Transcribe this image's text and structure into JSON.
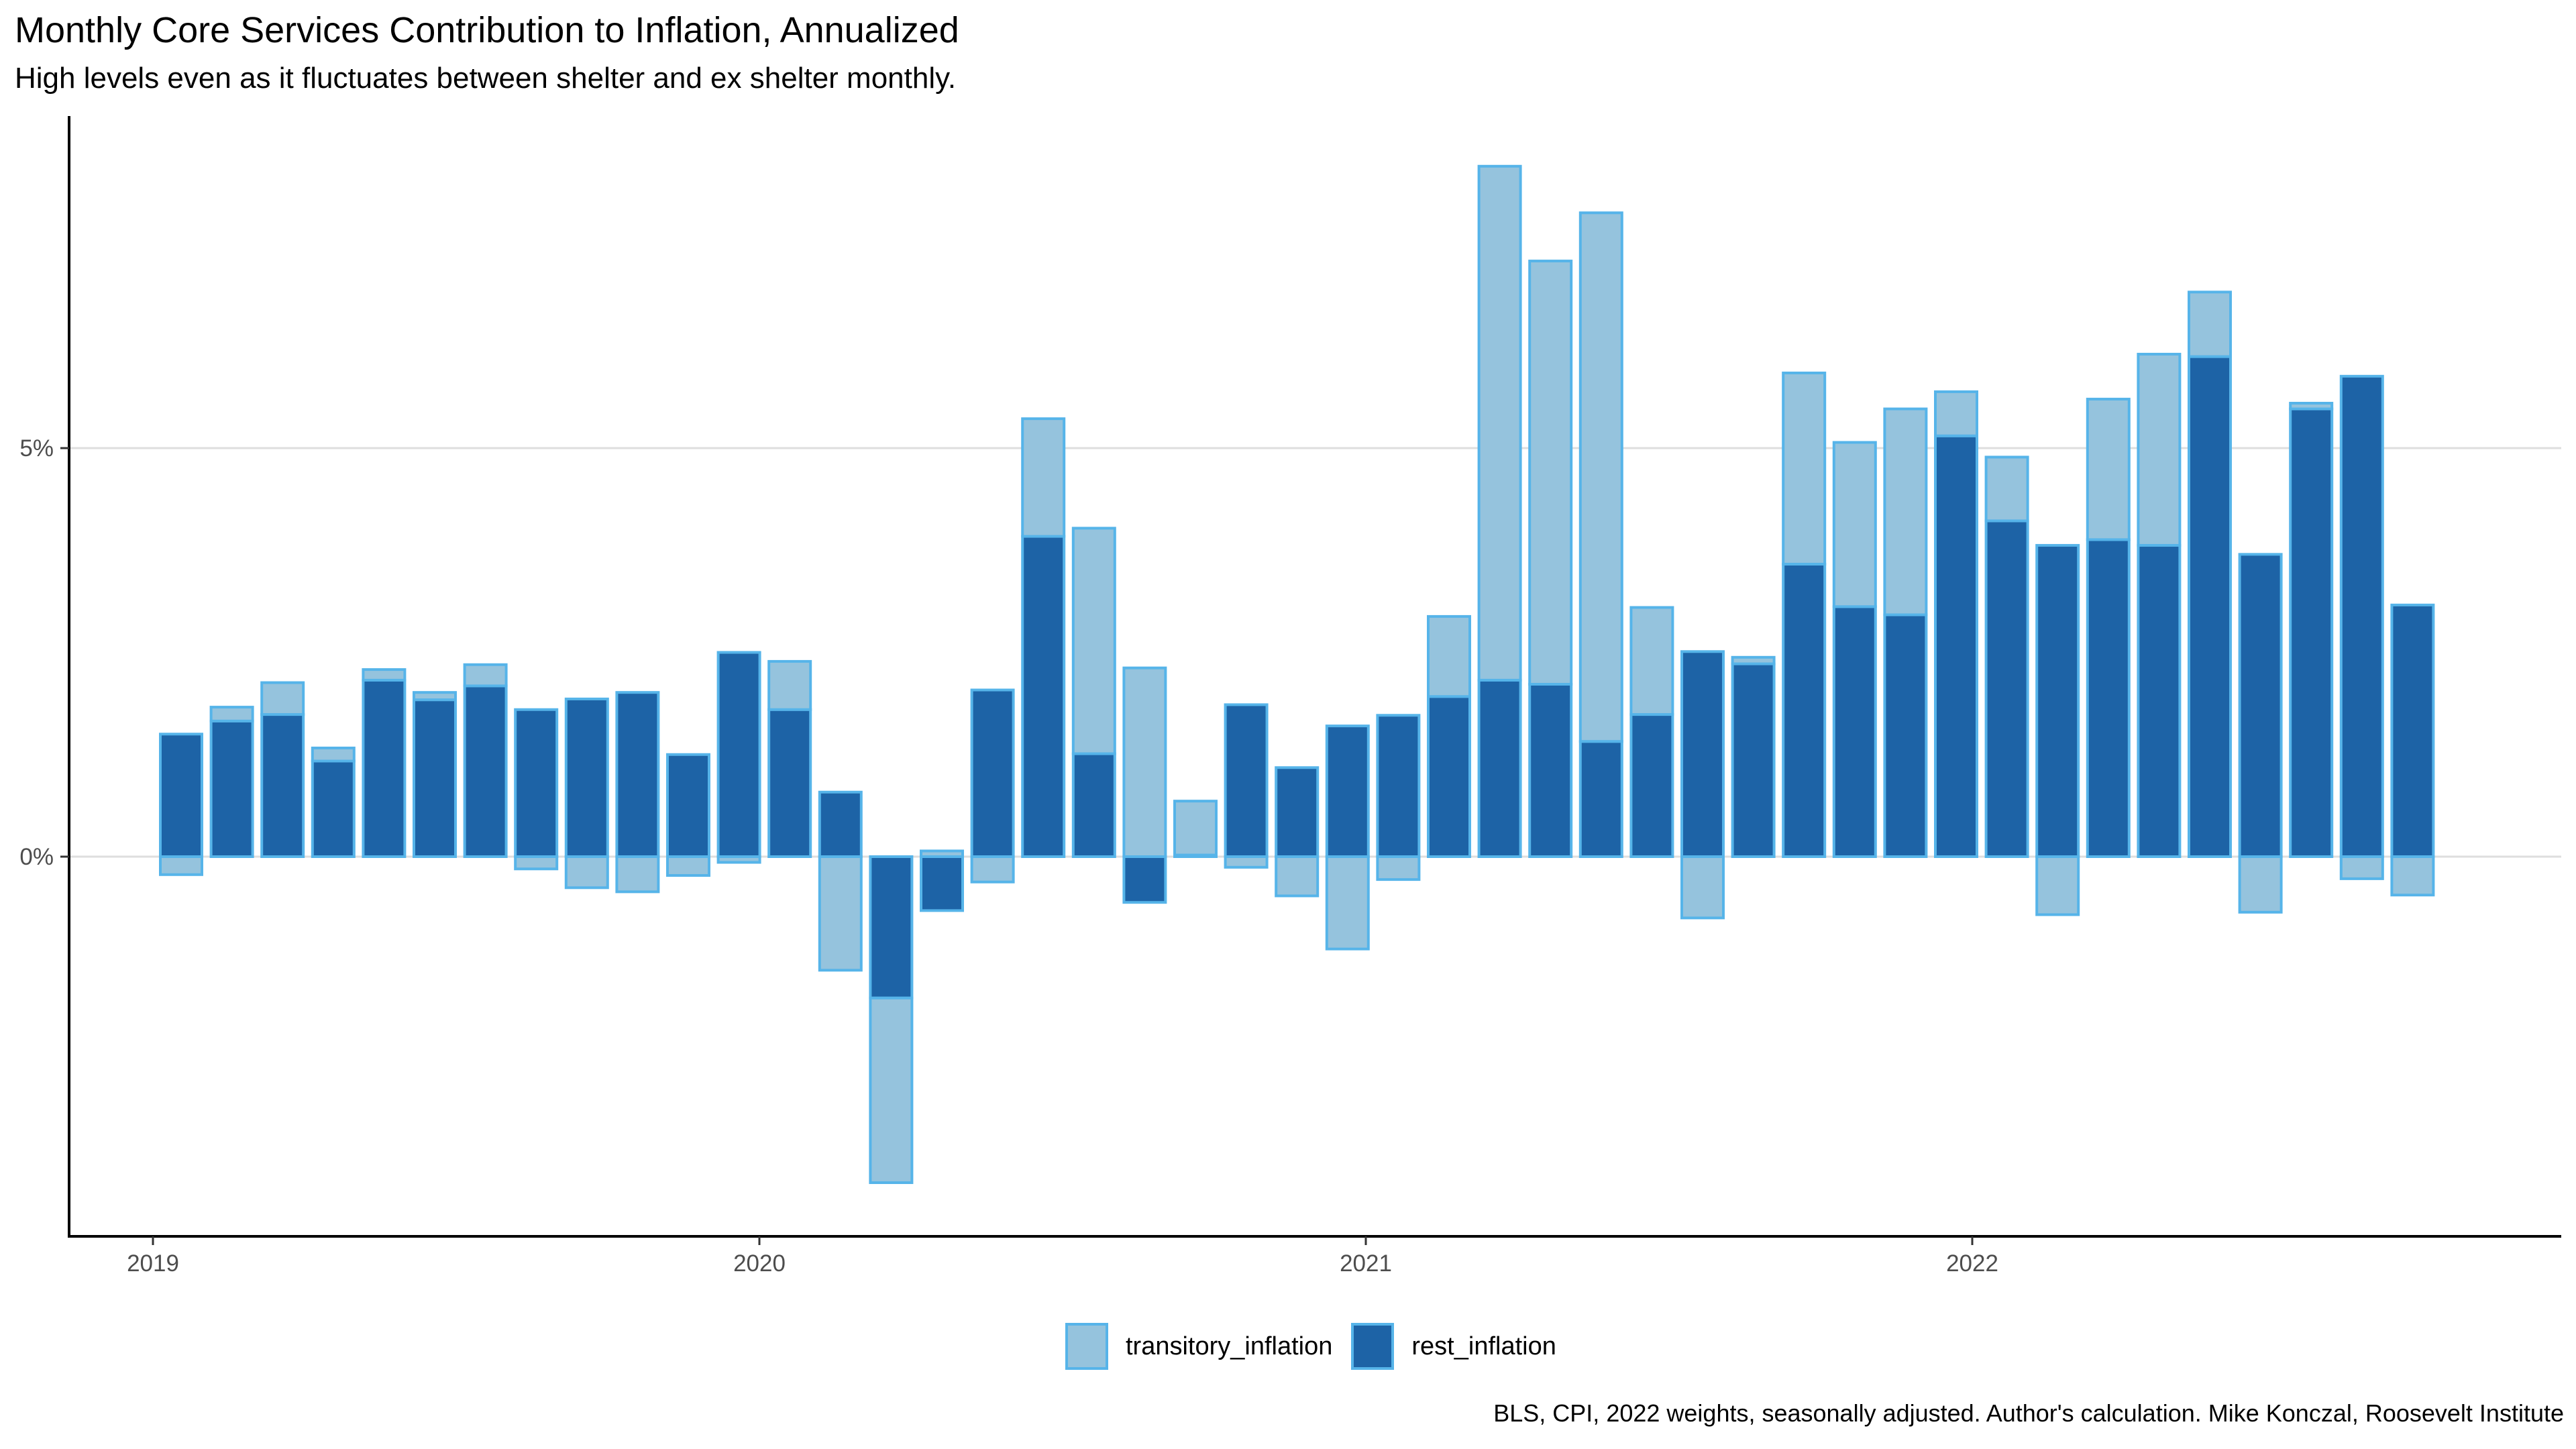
{
  "title": "Monthly Core Services Contribution to Inflation, Annualized",
  "subtitle": "High levels even as it fluctuates between shelter and ex shelter monthly.",
  "caption": "BLS, CPI, 2022 weights, seasonally adjusted. Author's calculation. Mike Konczal, Roosevelt Institute",
  "colors": {
    "transitory_fill": "#95c3dd",
    "rest_fill": "#1d63a6",
    "bar_outline": "#56b4e9",
    "gridline": "#dedede",
    "axis": "#000000"
  },
  "legend": [
    {
      "label": "transitory_inflation",
      "color": "#95c3dd"
    },
    {
      "label": "rest_inflation",
      "color": "#1d63a6"
    }
  ],
  "chart_data": {
    "type": "bar",
    "stacked": true,
    "title": "Monthly Core Services Contribution to Inflation, Annualized",
    "subtitle": "High levels even as it fluctuates between shelter and ex shelter monthly.",
    "xlabel": "",
    "ylabel": "",
    "x_ticks": [
      "2019",
      "2020",
      "2021",
      "2022"
    ],
    "y_ticks": [
      "0%",
      "5%"
    ],
    "ylim": [
      -4.6,
      9.0
    ],
    "grid": "horizontal major",
    "legend_position": "bottom",
    "categories": [
      "2019-02",
      "2019-03",
      "2019-04",
      "2019-05",
      "2019-06",
      "2019-07",
      "2019-08",
      "2019-09",
      "2019-10",
      "2019-11",
      "2019-12",
      "2020-01",
      "2020-02",
      "2020-03",
      "2020-04",
      "2020-05",
      "2020-06",
      "2020-07",
      "2020-08",
      "2020-09",
      "2020-10",
      "2020-11",
      "2020-12",
      "2021-01",
      "2021-02",
      "2021-03",
      "2021-04",
      "2021-05",
      "2021-06",
      "2021-07",
      "2021-08",
      "2021-09",
      "2021-10",
      "2021-11",
      "2021-12",
      "2022-01",
      "2022-02",
      "2022-03",
      "2022-04",
      "2022-05",
      "2022-06",
      "2022-07",
      "2022-08",
      "2022-09",
      "2022-10"
    ],
    "series": [
      {
        "name": "transitory_inflation",
        "values": [
          -0.22,
          0.17,
          0.39,
          0.16,
          0.13,
          0.09,
          0.26,
          -0.15,
          -0.38,
          -0.43,
          -0.23,
          -0.07,
          0.59,
          -1.39,
          -2.26,
          0.07,
          -0.31,
          1.44,
          2.76,
          2.31,
          0.66,
          -0.13,
          -0.48,
          -1.13,
          -0.28,
          0.98,
          6.29,
          5.18,
          6.47,
          1.31,
          -0.75,
          0.08,
          2.34,
          2.01,
          2.52,
          0.54,
          0.78,
          -0.71,
          1.72,
          2.34,
          0.79,
          -0.68,
          0.07,
          -0.27,
          -0.47
        ]
      },
      {
        "name": "rest_inflation",
        "values": [
          1.5,
          1.66,
          1.74,
          1.17,
          2.16,
          1.92,
          2.09,
          1.8,
          1.93,
          2.01,
          1.25,
          2.5,
          1.8,
          0.79,
          -1.73,
          -0.66,
          2.04,
          3.92,
          1.26,
          -0.56,
          0.02,
          1.86,
          1.09,
          1.6,
          1.73,
          1.96,
          2.16,
          2.11,
          1.41,
          1.74,
          2.51,
          2.36,
          3.58,
          3.06,
          2.96,
          5.15,
          4.11,
          3.81,
          3.88,
          3.81,
          6.12,
          3.7,
          5.48,
          5.88,
          3.08
        ]
      }
    ]
  }
}
